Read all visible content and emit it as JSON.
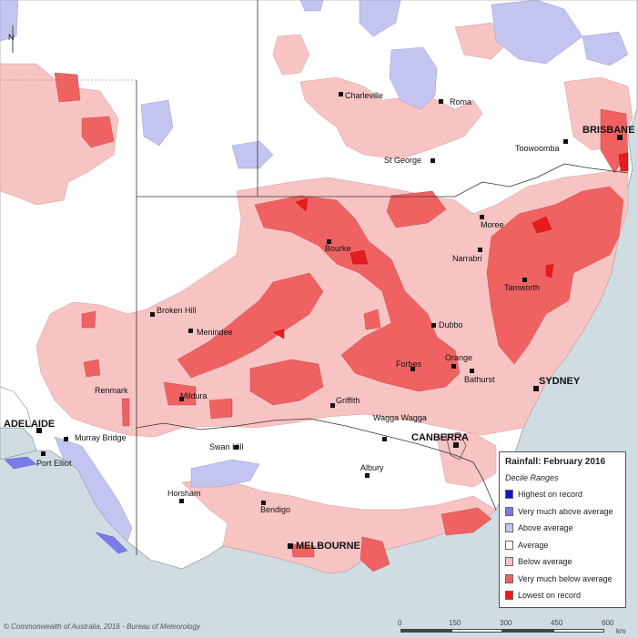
{
  "map": {
    "copyright": "© Commonwealth of Australia, 2016 - Bureau of Meteorology",
    "north_arrow_label": "↑"
  },
  "legend": {
    "title": "Rainfall: February 2016",
    "subtitle": "Decile Ranges",
    "items": [
      {
        "label": "Highest on record",
        "color": "#1414cc"
      },
      {
        "label": "Very much above average",
        "color": "#7a7ae8"
      },
      {
        "label": "Above average",
        "color": "#c4c4f0"
      },
      {
        "label": "Average",
        "color": "#ffffff"
      },
      {
        "label": "Below average",
        "color": "#f7c3c3"
      },
      {
        "label": "Very much below average",
        "color": "#f06262"
      },
      {
        "label": "Lowest on record",
        "color": "#e81c1c"
      }
    ]
  },
  "scale": {
    "ticks": [
      "0",
      "150",
      "300",
      "450",
      "600"
    ],
    "unit": "km"
  },
  "places": {
    "charleville": "Charleville",
    "roma": "Roma",
    "brisbane": "BRISBANE",
    "toowoomba": "Toowoomba",
    "st_george": "St George",
    "moree": "Moree",
    "bourke": "Bourke",
    "narrabri": "Narrabri",
    "tamworth": "Tamworth",
    "broken_hill": "Broken Hill",
    "menindee": "Menindee",
    "dubbo": "Dubbo",
    "orange": "Orange",
    "forbes": "Forbes",
    "bathurst": "Bathurst",
    "sydney": "SYDNEY",
    "renmark": "Renmark",
    "mildura": "Mildura",
    "griffith": "Griffith",
    "wagga_wagga": "Wagga Wagga",
    "adelaide": "ADELAIDE",
    "murray_bridge": "Murray Bridge",
    "canberra": "CANBERRA",
    "port_elliot": "Port Elliot",
    "swan_hill": "Swan Hill",
    "albury": "Albury",
    "horsham": "Horsham",
    "bendigo": "Bendigo",
    "melbourne": "MELBOURNE"
  }
}
